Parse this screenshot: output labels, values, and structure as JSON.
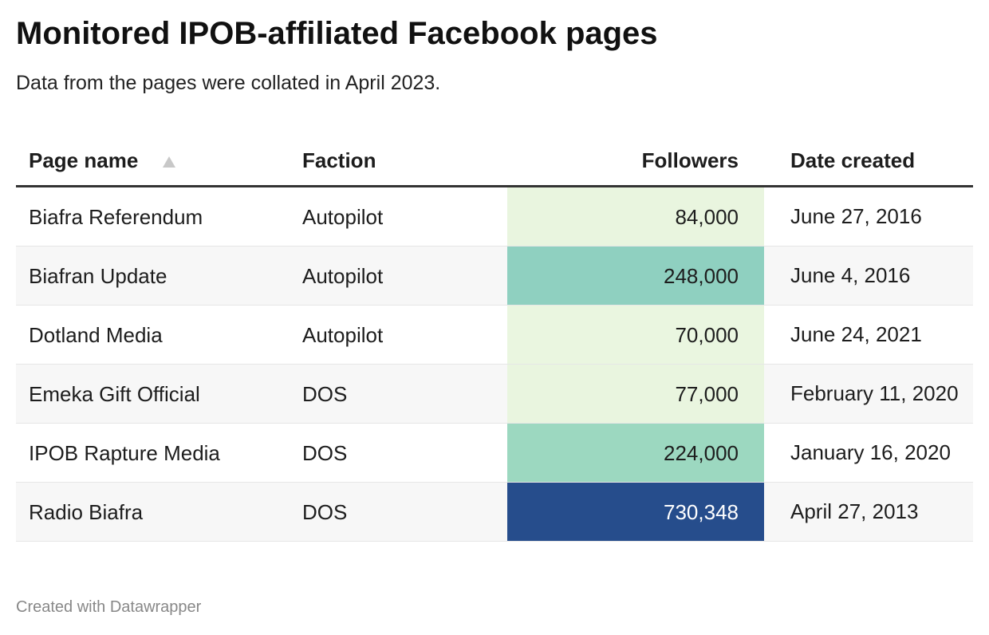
{
  "header": {
    "title": "Monitored IPOB-affiliated Facebook pages",
    "subtitle": "Data from the pages were collated in April 2023."
  },
  "table": {
    "columns": [
      "Page name",
      "Faction",
      "Followers",
      "Date created"
    ],
    "rows": [
      [
        "Biafra Referendum",
        "Autopilot",
        "84,000",
        "June 27, 2016"
      ],
      [
        "Biafran Update",
        "Autopilot",
        "248,000",
        "June 4, 2016"
      ],
      [
        "Dotland Media",
        "Autopilot",
        "70,000",
        "June 24, 2021"
      ],
      [
        "Emeka Gift Official",
        "DOS",
        "77,000",
        "February 11, 2020"
      ],
      [
        "IPOB Rapture Media",
        "DOS",
        "224,000",
        "January 16, 2020"
      ],
      [
        "Radio Biafra",
        "DOS",
        "730,348",
        "April 27, 2013"
      ]
    ],
    "followers_colors": [
      "#e9f5df",
      "#8fd0c0",
      "#eaf6e0",
      "#e9f5df",
      "#9cd8c0",
      "#264d8c"
    ]
  },
  "footer": {
    "credit": "Created with Datawrapper"
  }
}
